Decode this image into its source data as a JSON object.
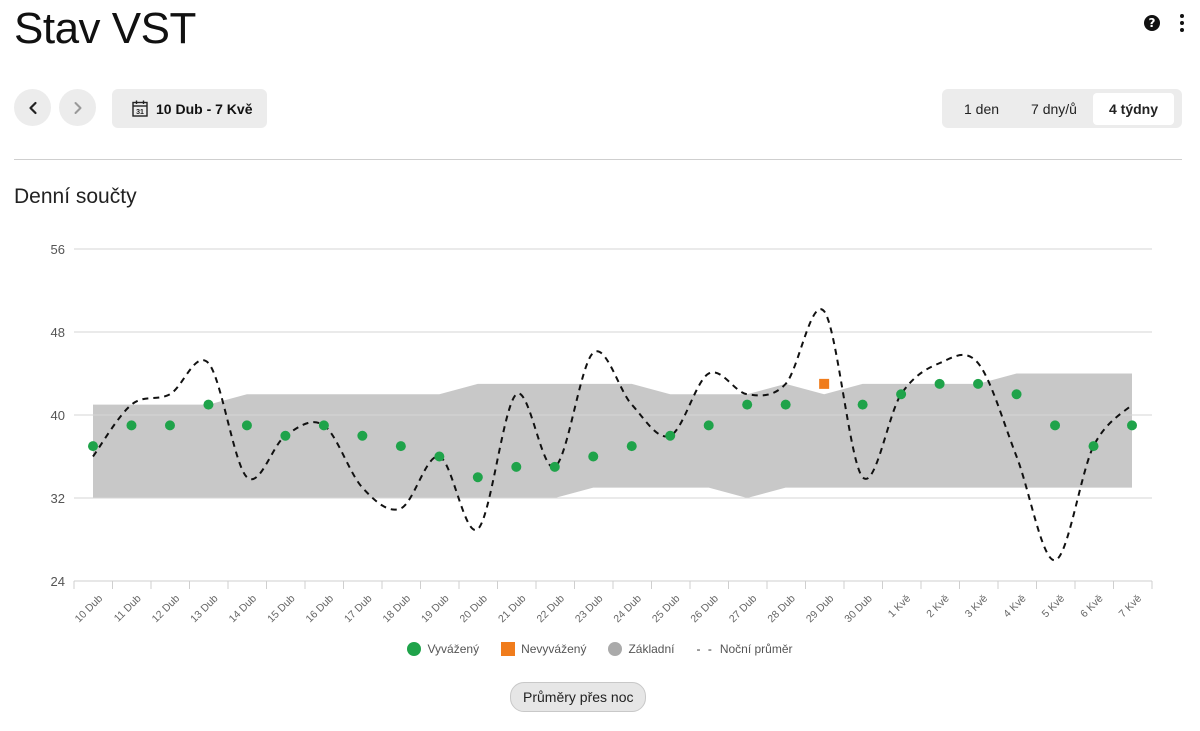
{
  "header": {
    "title": "Stav VST"
  },
  "icons": {
    "help": "help-icon",
    "more": "more-vert-icon",
    "prev": "chevron-left-icon",
    "next": "chevron-right-icon",
    "calendar": "calendar-icon",
    "calendar_day": "31"
  },
  "toolbar": {
    "date_range": "10 Dub - 7 Kvě",
    "periods": [
      "1 den",
      "7 dny/ů",
      "4 týdny"
    ],
    "active_period": "4 týdny"
  },
  "section": {
    "title": "Denní součty"
  },
  "chart_data": {
    "type": "scatter",
    "title": "",
    "xlabel": "",
    "ylabel": "",
    "ylim": [
      24,
      56
    ],
    "yticks": [
      24,
      32,
      40,
      48,
      56
    ],
    "grid": true,
    "legend_position": "bottom",
    "categories": [
      "10 Dub",
      "11 Dub",
      "12 Dub",
      "13 Dub",
      "14 Dub",
      "15 Dub",
      "16 Dub",
      "17 Dub",
      "18 Dub",
      "19 Dub",
      "20 Dub",
      "21 Dub",
      "22 Dub",
      "23 Dub",
      "24 Dub",
      "25 Dub",
      "26 Dub",
      "27 Dub",
      "28 Dub",
      "29 Dub",
      "30 Dub",
      "1 Kvě",
      "2 Kvě",
      "3 Kvě",
      "4 Kvě",
      "5 Kvě",
      "6 Kvě",
      "7 Kvě"
    ],
    "series": [
      {
        "name": "Vyvážený",
        "type": "scatter",
        "color": "#1fa34a",
        "values": [
          37,
          39,
          39,
          41,
          39,
          38,
          39,
          38,
          37,
          36,
          34,
          35,
          35,
          36,
          37,
          38,
          39,
          41,
          41,
          null,
          41,
          42,
          43,
          43,
          42,
          39,
          37,
          39
        ]
      },
      {
        "name": "Nevyvážený",
        "type": "scatter",
        "color": "#f07c1c",
        "values": [
          null,
          null,
          null,
          null,
          null,
          null,
          null,
          null,
          null,
          null,
          null,
          null,
          null,
          null,
          null,
          null,
          null,
          null,
          null,
          43,
          null,
          null,
          null,
          null,
          null,
          null,
          null,
          null
        ]
      },
      {
        "name": "Základní",
        "type": "band",
        "color": "#c8c8c8",
        "lower": [
          32,
          32,
          32,
          32,
          32,
          32,
          32,
          32,
          32,
          32,
          32,
          32,
          32,
          33,
          33,
          33,
          33,
          32,
          33,
          33,
          33,
          33,
          33,
          33,
          33,
          33,
          33,
          33
        ],
        "upper": [
          41,
          41,
          41,
          41,
          42,
          42,
          42,
          42,
          42,
          42,
          43,
          43,
          43,
          43,
          43,
          42,
          42,
          42,
          43,
          42,
          43,
          43,
          43,
          43,
          44,
          44,
          44,
          44
        ]
      },
      {
        "name": "Noční průměr",
        "type": "line",
        "style": "dashed",
        "color": "#111111",
        "values": [
          36,
          41,
          42,
          45,
          34,
          38,
          39,
          33,
          31,
          36,
          29,
          42,
          35,
          46,
          41,
          38,
          44,
          42,
          43,
          50,
          34,
          42,
          45,
          45,
          36,
          26,
          37,
          41
        ]
      }
    ]
  },
  "footer": {
    "button": "Průměry přes noc"
  }
}
